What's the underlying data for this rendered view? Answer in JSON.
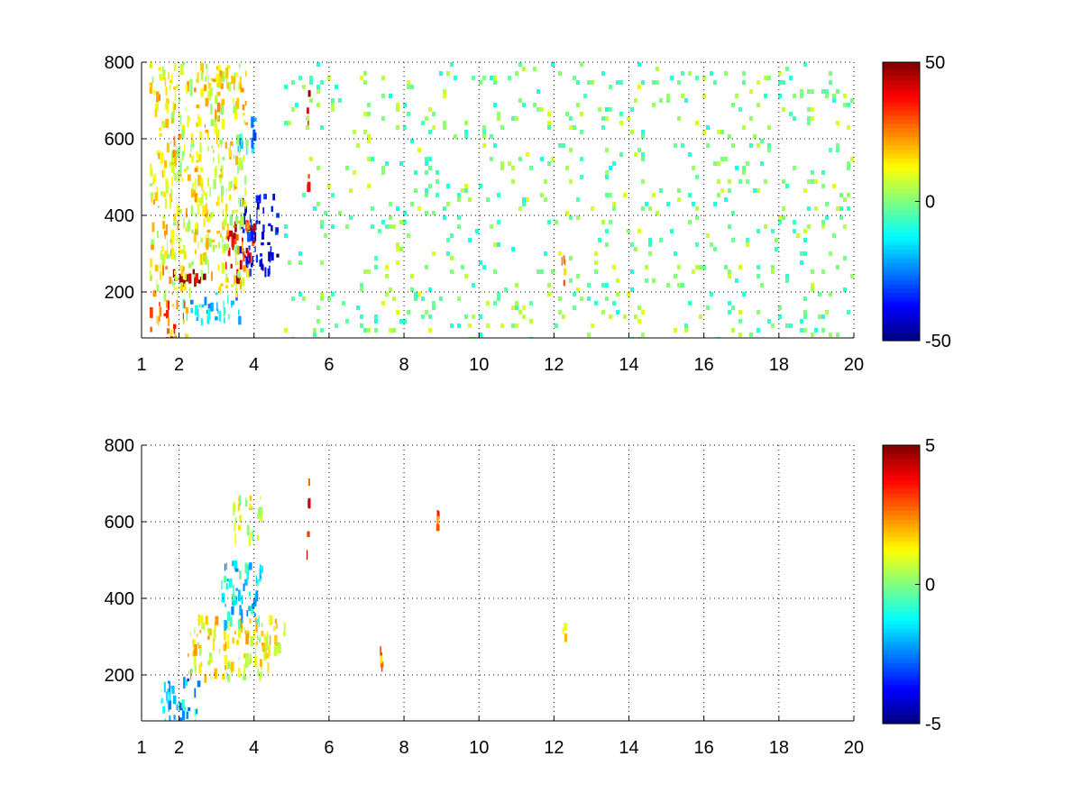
{
  "chart_data": [
    {
      "type": "heatmap",
      "title": "",
      "xlabel": "",
      "ylabel": "",
      "xlim": [
        1,
        20
      ],
      "ylim": [
        80,
        800
      ],
      "x_ticks": [
        1,
        2,
        4,
        6,
        8,
        10,
        12,
        14,
        16,
        18,
        20
      ],
      "x_tick_labels": [
        "1",
        "2",
        "4",
        "6",
        "8",
        "10",
        "12",
        "14",
        "16",
        "18",
        "20"
      ],
      "y_ticks": [
        200,
        400,
        600,
        800
      ],
      "y_tick_labels": [
        "200",
        "400",
        "600",
        "800"
      ],
      "grid": true,
      "grid_style": "dotted",
      "colormap": "jet",
      "colorbar": {
        "range": [
          -50,
          50
        ],
        "ticks": [
          50,
          0,
          -50
        ],
        "tick_labels": [
          "50",
          "0",
          "-50"
        ]
      },
      "features": [
        {
          "x": [
            1.8,
            3.6
          ],
          "y": [
            230,
            260
          ],
          "value": 45
        },
        {
          "x": [
            3.2,
            4.0
          ],
          "y": [
            260,
            400
          ],
          "value": 38
        },
        {
          "x": [
            3.6,
            4.6
          ],
          "y": [
            260,
            460
          ],
          "value": -40
        },
        {
          "x": [
            3.5,
            4.0
          ],
          "y": [
            570,
            660
          ],
          "value": -20
        },
        {
          "x": [
            2.0,
            3.6
          ],
          "y": [
            130,
            200
          ],
          "value": -15
        },
        {
          "x": [
            1.2,
            2.2
          ],
          "y": [
            80,
            180
          ],
          "value": 25
        },
        {
          "x": [
            1.2,
            3.8
          ],
          "y": [
            200,
            800
          ],
          "value": 12
        },
        {
          "x": [
            5.4,
            5.45
          ],
          "y": [
            420,
            760
          ],
          "value": 40
        },
        {
          "x": [
            12.2,
            12.3
          ],
          "y": [
            220,
            310
          ],
          "value": 20
        }
      ],
      "noise_x_range": [
        4.8,
        20
      ],
      "noise_value_range": [
        -10,
        10
      ],
      "noise_density": 0.07
    },
    {
      "type": "heatmap",
      "title": "",
      "xlabel": "",
      "ylabel": "",
      "xlim": [
        1,
        20
      ],
      "ylim": [
        80,
        800
      ],
      "x_ticks": [
        1,
        2,
        4,
        6,
        8,
        10,
        12,
        14,
        16,
        18,
        20
      ],
      "x_tick_labels": [
        "1",
        "2",
        "4",
        "6",
        "8",
        "10",
        "12",
        "14",
        "16",
        "18",
        "20"
      ],
      "y_ticks": [
        200,
        400,
        600,
        800
      ],
      "y_tick_labels": [
        "200",
        "400",
        "600",
        "800"
      ],
      "grid": true,
      "grid_style": "dotted",
      "colormap": "jet",
      "colorbar": {
        "range": [
          -5,
          5
        ],
        "ticks": [
          5,
          0,
          -5
        ],
        "tick_labels": [
          "5",
          "0",
          "-5"
        ]
      },
      "features": [
        {
          "x": [
            2.2,
            4.8
          ],
          "y": [
            200,
            360
          ],
          "value": 1.2
        },
        {
          "x": [
            3.0,
            4.2
          ],
          "y": [
            340,
            500
          ],
          "value": -1.5
        },
        {
          "x": [
            3.4,
            4.2
          ],
          "y": [
            560,
            680
          ],
          "value": 0.8
        },
        {
          "x": [
            1.5,
            2.5
          ],
          "y": [
            80,
            200
          ],
          "value": -1.8
        },
        {
          "x": [
            5.4,
            5.45
          ],
          "y": [
            480,
            750
          ],
          "value": 3.5
        },
        {
          "x": [
            7.35,
            7.4
          ],
          "y": [
            220,
            310
          ],
          "value": 2.0
        },
        {
          "x": [
            8.85,
            8.9
          ],
          "y": [
            590,
            640
          ],
          "value": 2.5
        },
        {
          "x": [
            12.2,
            12.3
          ],
          "y": [
            280,
            340
          ],
          "value": 1.5
        }
      ],
      "noise_x_range": [
        4.8,
        20
      ],
      "noise_value_range": [
        -1,
        1
      ],
      "noise_density": 0.0
    }
  ]
}
